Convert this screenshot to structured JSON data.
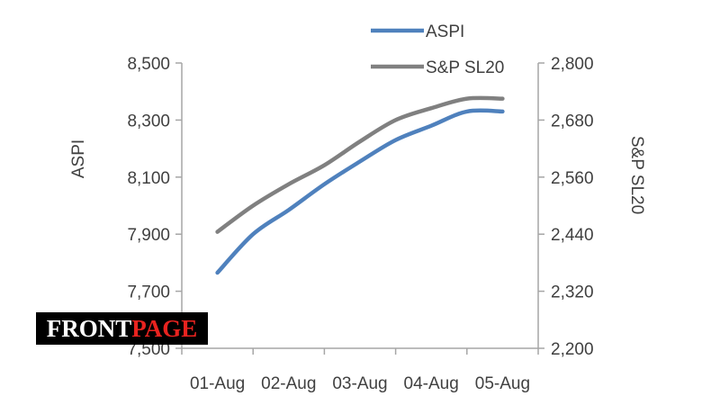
{
  "chart_data": {
    "type": "line",
    "categories": [
      "01-Aug",
      "02-Aug",
      "03-Aug",
      "04-Aug",
      "05-Aug"
    ],
    "series": [
      {
        "name": "ASPI",
        "axis": "left",
        "color": "#4f81bd",
        "x": [
          0,
          0.5,
          1,
          1.5,
          2,
          2.5,
          3,
          3.5,
          4
        ],
        "values": [
          7765,
          7900,
          7985,
          8075,
          8155,
          8230,
          8280,
          8330,
          8330
        ]
      },
      {
        "name": "S&P SL20",
        "axis": "right",
        "color": "#808080",
        "x": [
          0,
          0.5,
          1,
          1.5,
          2,
          2.5,
          3,
          3.5,
          4
        ],
        "values": [
          2445,
          2500,
          2545,
          2585,
          2635,
          2680,
          2705,
          2725,
          2725
        ]
      }
    ],
    "left_axis": {
      "label": "ASPI",
      "ylim": [
        7500,
        8500
      ],
      "ticks": [
        7500,
        7700,
        7900,
        8100,
        8300,
        8500
      ],
      "tick_labels": [
        "7,500",
        "7,700",
        "7,900",
        "8,100",
        "8,300",
        "8,500"
      ]
    },
    "right_axis": {
      "label": "S&P SL20",
      "ylim": [
        2200,
        2800
      ],
      "ticks": [
        2200,
        2320,
        2440,
        2560,
        2680,
        2800
      ],
      "tick_labels": [
        "2,200",
        "2,320",
        "2,440",
        "2,560",
        "2,680",
        "2,800"
      ]
    },
    "legend": {
      "entries": [
        "ASPI",
        "S&P SL20"
      ],
      "placement": "top"
    },
    "grid": false
  },
  "watermark": {
    "part1": "FRONT",
    "part2": "PAGE",
    "color1": "#ffffff",
    "color2": "#e8231f"
  }
}
